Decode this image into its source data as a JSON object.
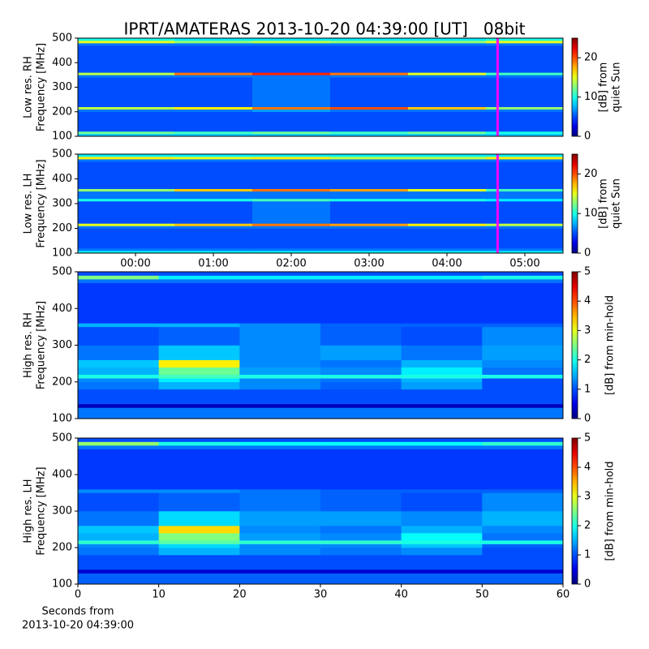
{
  "chart_data": [
    {
      "type": "heatmap",
      "title": "IPRT/AMATERAS 2013-10-20 04:39:00 [UT]   08bit",
      "ylabel": [
        "Low res. RH",
        "Frequency [MHz]"
      ],
      "xlim": [
        -0.74,
        5.49
      ],
      "ylim": [
        100,
        500
      ],
      "yticks": [
        100,
        200,
        300,
        400,
        500
      ],
      "x_bins": [
        -0.74,
        0.5,
        1.5,
        2.5,
        3.5,
        4.5,
        5.49
      ],
      "y_bins": [
        100,
        110,
        120,
        200,
        210,
        220,
        340,
        350,
        360,
        470,
        480,
        490,
        500
      ],
      "z": [
        [
          8,
          8,
          8,
          8,
          8,
          8
        ],
        [
          12,
          11,
          12,
          11,
          12,
          10
        ],
        [
          5,
          5,
          5,
          5,
          5,
          5
        ],
        [
          6,
          6,
          7,
          6,
          6,
          6
        ],
        [
          14,
          16,
          19,
          20,
          17,
          13
        ],
        [
          5,
          5,
          6,
          5,
          5,
          5
        ],
        [
          6,
          6,
          6,
          6,
          6,
          6
        ],
        [
          14,
          19,
          21,
          19,
          15,
          11
        ],
        [
          5,
          5,
          5,
          5,
          5,
          5
        ],
        [
          6,
          6,
          6,
          6,
          6,
          6
        ],
        [
          15,
          13,
          14,
          13,
          13,
          15
        ],
        [
          10,
          9,
          9,
          9,
          9,
          10
        ]
      ],
      "clim": [
        0,
        25
      ],
      "cbar_ticks": [
        0,
        10,
        20
      ],
      "cbar_label": [
        "[dB] from",
        "quiet Sun"
      ],
      "marker_x": 4.65,
      "marker_color": "#ff00ff"
    },
    {
      "type": "heatmap",
      "ylabel": [
        "Low res. LH",
        "Frequency [MHz]"
      ],
      "xlim": [
        -0.74,
        5.49
      ],
      "ylim": [
        100,
        500
      ],
      "yticks": [
        100,
        200,
        300,
        400,
        500
      ],
      "xticks": [
        {
          "value": 0,
          "label": "00:00"
        },
        {
          "value": 1,
          "label": "01:00"
        },
        {
          "value": 2,
          "label": "02:00"
        },
        {
          "value": 3,
          "label": "03:00"
        },
        {
          "value": 4,
          "label": "04:00"
        },
        {
          "value": 5,
          "label": "05:00"
        }
      ],
      "x_bins": [
        -0.74,
        0.5,
        1.5,
        2.5,
        3.5,
        4.5,
        5.49
      ],
      "y_bins": [
        100,
        110,
        120,
        200,
        210,
        220,
        310,
        320,
        350,
        360,
        470,
        480,
        490,
        500
      ],
      "z": [
        [
          9,
          9,
          9,
          9,
          9,
          9
        ],
        [
          6,
          6,
          6,
          6,
          6,
          6
        ],
        [
          5,
          5,
          5,
          5,
          5,
          5
        ],
        [
          6,
          6,
          6,
          6,
          6,
          6
        ],
        [
          15,
          17,
          19,
          18,
          16,
          14
        ],
        [
          5,
          5,
          6,
          5,
          5,
          5
        ],
        [
          10,
          10,
          11,
          10,
          10,
          9
        ],
        [
          6,
          6,
          6,
          6,
          6,
          6
        ],
        [
          13,
          17,
          19,
          18,
          15,
          11
        ],
        [
          5,
          5,
          5,
          5,
          5,
          5
        ],
        [
          6,
          6,
          6,
          6,
          6,
          6
        ],
        [
          16,
          15,
          16,
          14,
          14,
          16
        ],
        [
          9,
          9,
          9,
          9,
          9,
          9
        ]
      ],
      "clim": [
        0,
        25
      ],
      "cbar_ticks": [
        0,
        10,
        20
      ],
      "cbar_label": [
        "[dB] from",
        "quiet Sun"
      ],
      "marker_x": 4.65,
      "marker_color": "#ff00ff"
    },
    {
      "type": "heatmap",
      "ylabel": [
        "High res. RH",
        "Frequency [MHz]"
      ],
      "xlim": [
        0,
        60
      ],
      "ylim": [
        100,
        500
      ],
      "yticks": [
        100,
        200,
        300,
        400,
        500
      ],
      "x_bins": [
        0,
        10,
        20,
        30,
        40,
        50,
        60
      ],
      "y_bins": [
        100,
        130,
        140,
        180,
        200,
        210,
        220,
        240,
        260,
        300,
        350,
        360,
        470,
        480,
        490,
        500
      ],
      "z": [
        [
          1.2,
          1.2,
          1.2,
          1.2,
          1.2,
          1.2
        ],
        [
          0.3,
          0.3,
          0.3,
          0.3,
          0.3,
          0.3
        ],
        [
          1,
          1,
          1,
          1,
          1,
          1
        ],
        [
          1.2,
          1.5,
          1.3,
          1.1,
          1.4,
          1
        ],
        [
          1.3,
          1.8,
          1.3,
          1.2,
          1.5,
          1
        ],
        [
          2,
          2.2,
          2,
          2,
          2,
          2
        ],
        [
          1.5,
          2.4,
          1.4,
          1.3,
          1.8,
          1.2
        ],
        [
          1.6,
          3.2,
          1.3,
          1.2,
          1.5,
          1.3
        ],
        [
          1.2,
          1.6,
          1.3,
          1.4,
          1.2,
          1.4
        ],
        [
          1,
          1.1,
          1.3,
          1.1,
          1,
          1.3
        ],
        [
          1.5,
          1.5,
          1.3,
          1.1,
          1.1,
          1.1
        ],
        [
          0.9,
          0.9,
          0.9,
          0.9,
          0.9,
          0.9
        ],
        [
          1.2,
          1.2,
          1.2,
          1.2,
          1.2,
          1.2
        ],
        [
          2.5,
          1.8,
          1.8,
          1.8,
          1.8,
          2
        ],
        [
          1,
          1,
          1,
          1,
          1,
          1
        ]
      ],
      "clim": [
        0,
        5
      ],
      "cbar_ticks": [
        0,
        1,
        2,
        3,
        4,
        5
      ],
      "cbar_label": [
        "[dB] from min-hold"
      ]
    },
    {
      "type": "heatmap",
      "ylabel": [
        "High res. LH",
        "Frequency [MHz]"
      ],
      "xlim": [
        0,
        60
      ],
      "ylim": [
        100,
        500
      ],
      "yticks": [
        100,
        200,
        300,
        400,
        500
      ],
      "xticks": [
        0,
        10,
        20,
        30,
        40,
        50,
        60
      ],
      "xlabel": [
        "Seconds from",
        "2013-10-20 04:39:00"
      ],
      "x_bins": [
        0,
        10,
        20,
        30,
        40,
        50,
        60
      ],
      "y_bins": [
        100,
        130,
        140,
        180,
        200,
        210,
        220,
        240,
        260,
        300,
        350,
        360,
        470,
        480,
        490,
        500
      ],
      "z": [
        [
          1.1,
          1.1,
          1.1,
          1.1,
          1.1,
          1.1
        ],
        [
          0.4,
          0.4,
          0.4,
          0.4,
          0.4,
          0.4
        ],
        [
          1,
          1,
          1,
          1,
          1,
          1
        ],
        [
          1.2,
          1.5,
          1.3,
          1.2,
          1.3,
          1
        ],
        [
          1.3,
          1.7,
          1.3,
          1.3,
          1.6,
          1.1
        ],
        [
          2.1,
          2.3,
          2.1,
          2.1,
          2,
          2
        ],
        [
          1.5,
          2.5,
          1.4,
          1.3,
          1.9,
          1.2
        ],
        [
          1.6,
          3.3,
          1.3,
          1.2,
          1.5,
          1.3
        ],
        [
          1.2,
          1.7,
          1.4,
          1.4,
          1.3,
          1.5
        ],
        [
          1,
          1.1,
          1.2,
          1.1,
          1,
          1.3
        ],
        [
          1.3,
          1.3,
          1.2,
          1.1,
          1.1,
          1.1
        ],
        [
          0.9,
          0.9,
          0.9,
          0.9,
          0.9,
          0.9
        ],
        [
          1.2,
          1.2,
          1.2,
          1.2,
          1.2,
          1.2
        ],
        [
          2.6,
          2,
          1.9,
          1.9,
          1.9,
          2.1
        ],
        [
          1,
          1,
          1,
          1,
          1,
          1
        ]
      ],
      "clim": [
        0,
        5
      ],
      "cbar_ticks": [
        0,
        1,
        2,
        3,
        4,
        5
      ],
      "cbar_label": [
        "[dB] from min-hold"
      ]
    }
  ]
}
